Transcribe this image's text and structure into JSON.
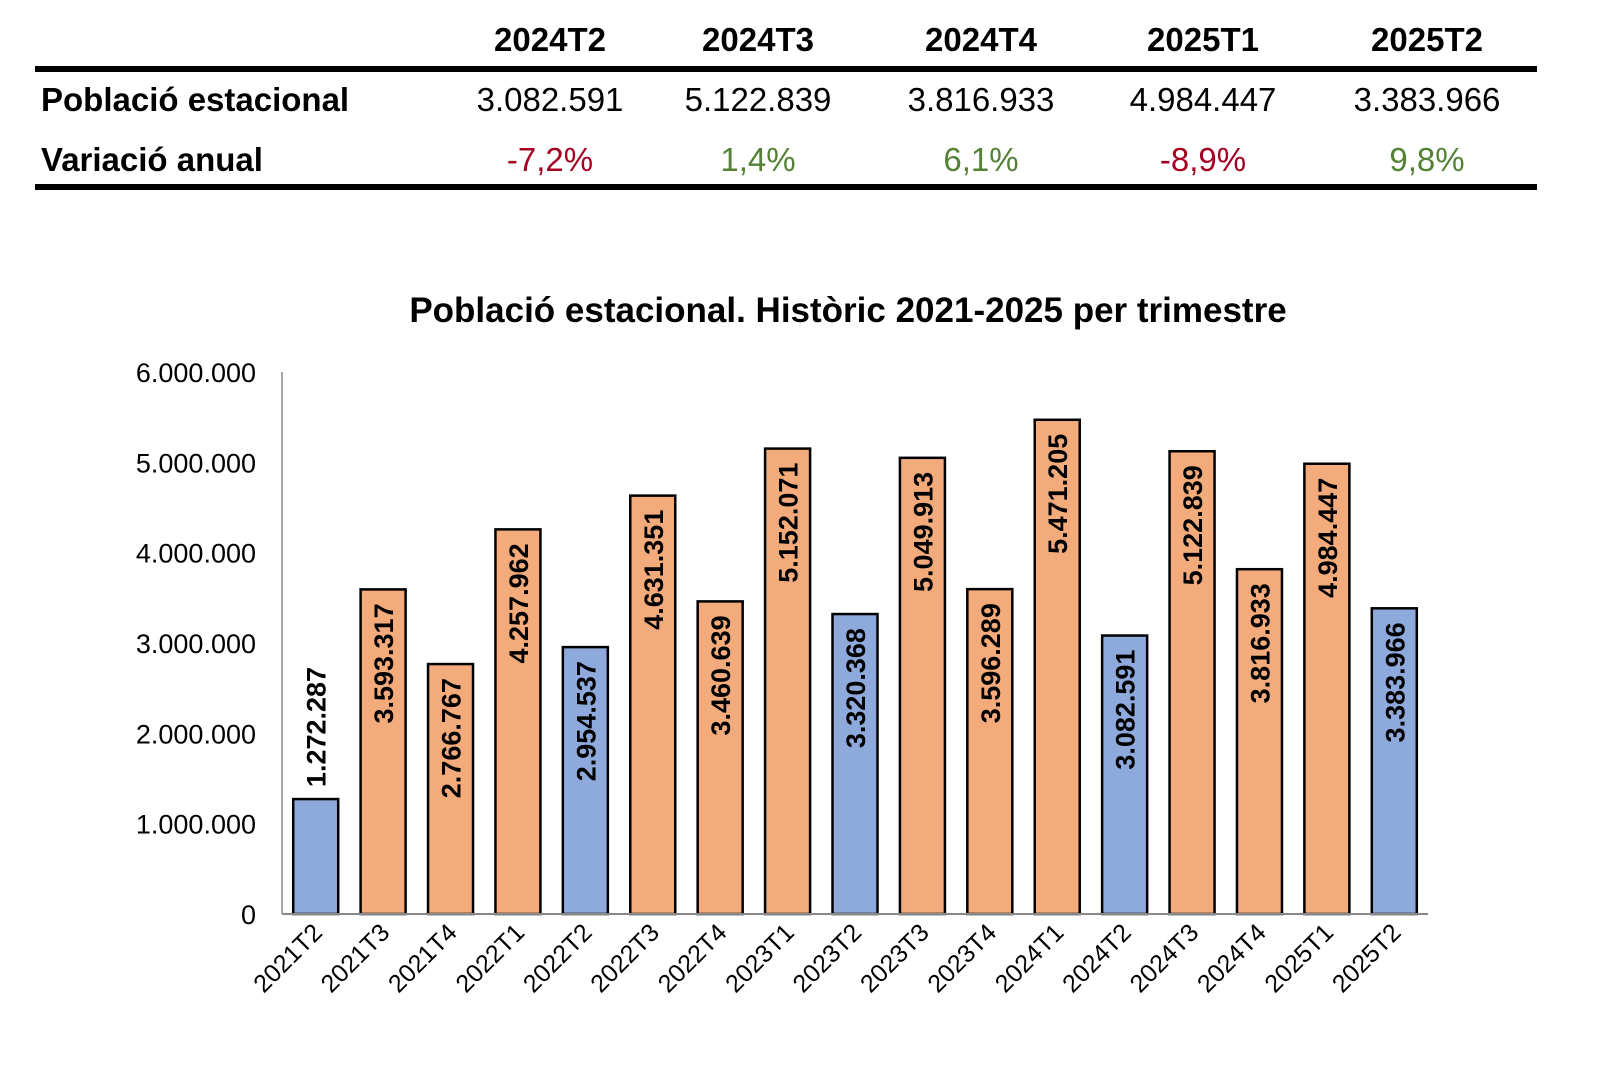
{
  "table": {
    "columns": [
      "2024T2",
      "2024T3",
      "2024T4",
      "2025T1",
      "2025T2"
    ],
    "rows": [
      {
        "label": "Població estacional",
        "values": [
          "3.082.591",
          "5.122.839",
          "3.816.933",
          "4.984.447",
          "3.383.966"
        ]
      },
      {
        "label": "Variació anual",
        "values": [
          "-7,2%",
          "1,4%",
          "6,1%",
          "-8,9%",
          "9,8%"
        ],
        "colors": [
          "#A50021",
          "#548235",
          "#548235",
          "#A50021",
          "#548235"
        ]
      }
    ]
  },
  "chart_data": {
    "type": "bar",
    "title": "Població estacional. Històric 2021-2025 per trimestre",
    "categories": [
      "2021T2",
      "2021T3",
      "2021T4",
      "2022T1",
      "2022T2",
      "2022T3",
      "2022T4",
      "2023T1",
      "2023T2",
      "2023T3",
      "2023T4",
      "2024T1",
      "2024T2",
      "2024T3",
      "2024T4",
      "2025T1",
      "2025T2"
    ],
    "values": [
      1272287,
      3593317,
      2766767,
      4257962,
      2954537,
      4631351,
      3460639,
      5152071,
      3320368,
      5049913,
      3596289,
      5471205,
      3082591,
      5122839,
      3816933,
      4984447,
      3383966
    ],
    "data_labels": [
      "1.272.287",
      "3.593.317",
      "2.766.767",
      "4.257.962",
      "2.954.537",
      "4.631.351",
      "3.460.639",
      "5.152.071",
      "3.320.368",
      "5.049.913",
      "3.596.289",
      "5.471.205",
      "3.082.591",
      "5.122.839",
      "3.816.933",
      "4.984.447",
      "3.383.966"
    ],
    "bar_colors": [
      "#8EA9DB",
      "#F4AB7C",
      "#F4AB7C",
      "#F4AB7C",
      "#8EA9DB",
      "#F4AB7C",
      "#F4AB7C",
      "#F4AB7C",
      "#8EA9DB",
      "#F4AB7C",
      "#F4AB7C",
      "#F4AB7C",
      "#8EA9DB",
      "#F4AB7C",
      "#F4AB7C",
      "#F4AB7C",
      "#8EA9DB"
    ],
    "ylim": [
      0,
      6000000
    ],
    "yticks": [
      0,
      1000000,
      2000000,
      3000000,
      4000000,
      5000000,
      6000000
    ],
    "ytick_labels": [
      "0",
      "1.000.000",
      "2.000.000",
      "3.000.000",
      "4.000.000",
      "5.000.000",
      "6.000.000"
    ],
    "grid": false,
    "legend": "none"
  }
}
